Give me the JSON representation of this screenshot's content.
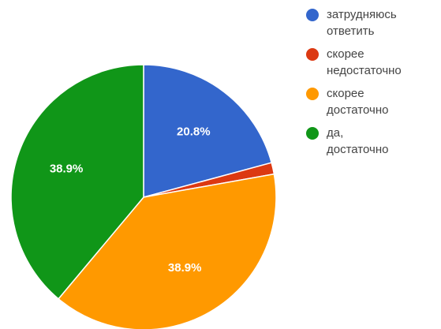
{
  "chart_data": {
    "type": "pie",
    "slices": [
      {
        "label": "затрудняюсь\nответить",
        "value": 20.8,
        "display": "20.8%",
        "color": "#3366cc"
      },
      {
        "label": "скорее\nнедостаточно",
        "value": 1.4,
        "display": "",
        "color": "#dc3912"
      },
      {
        "label": "скорее\nдостаточно",
        "value": 38.9,
        "display": "38.9%",
        "color": "#ff9900"
      },
      {
        "label": "да,\nдостаточно",
        "value": 38.9,
        "display": "38.9%",
        "color": "#109618"
      }
    ],
    "start_angle_deg": 0,
    "direction": "clockwise",
    "legend_position": "right"
  }
}
